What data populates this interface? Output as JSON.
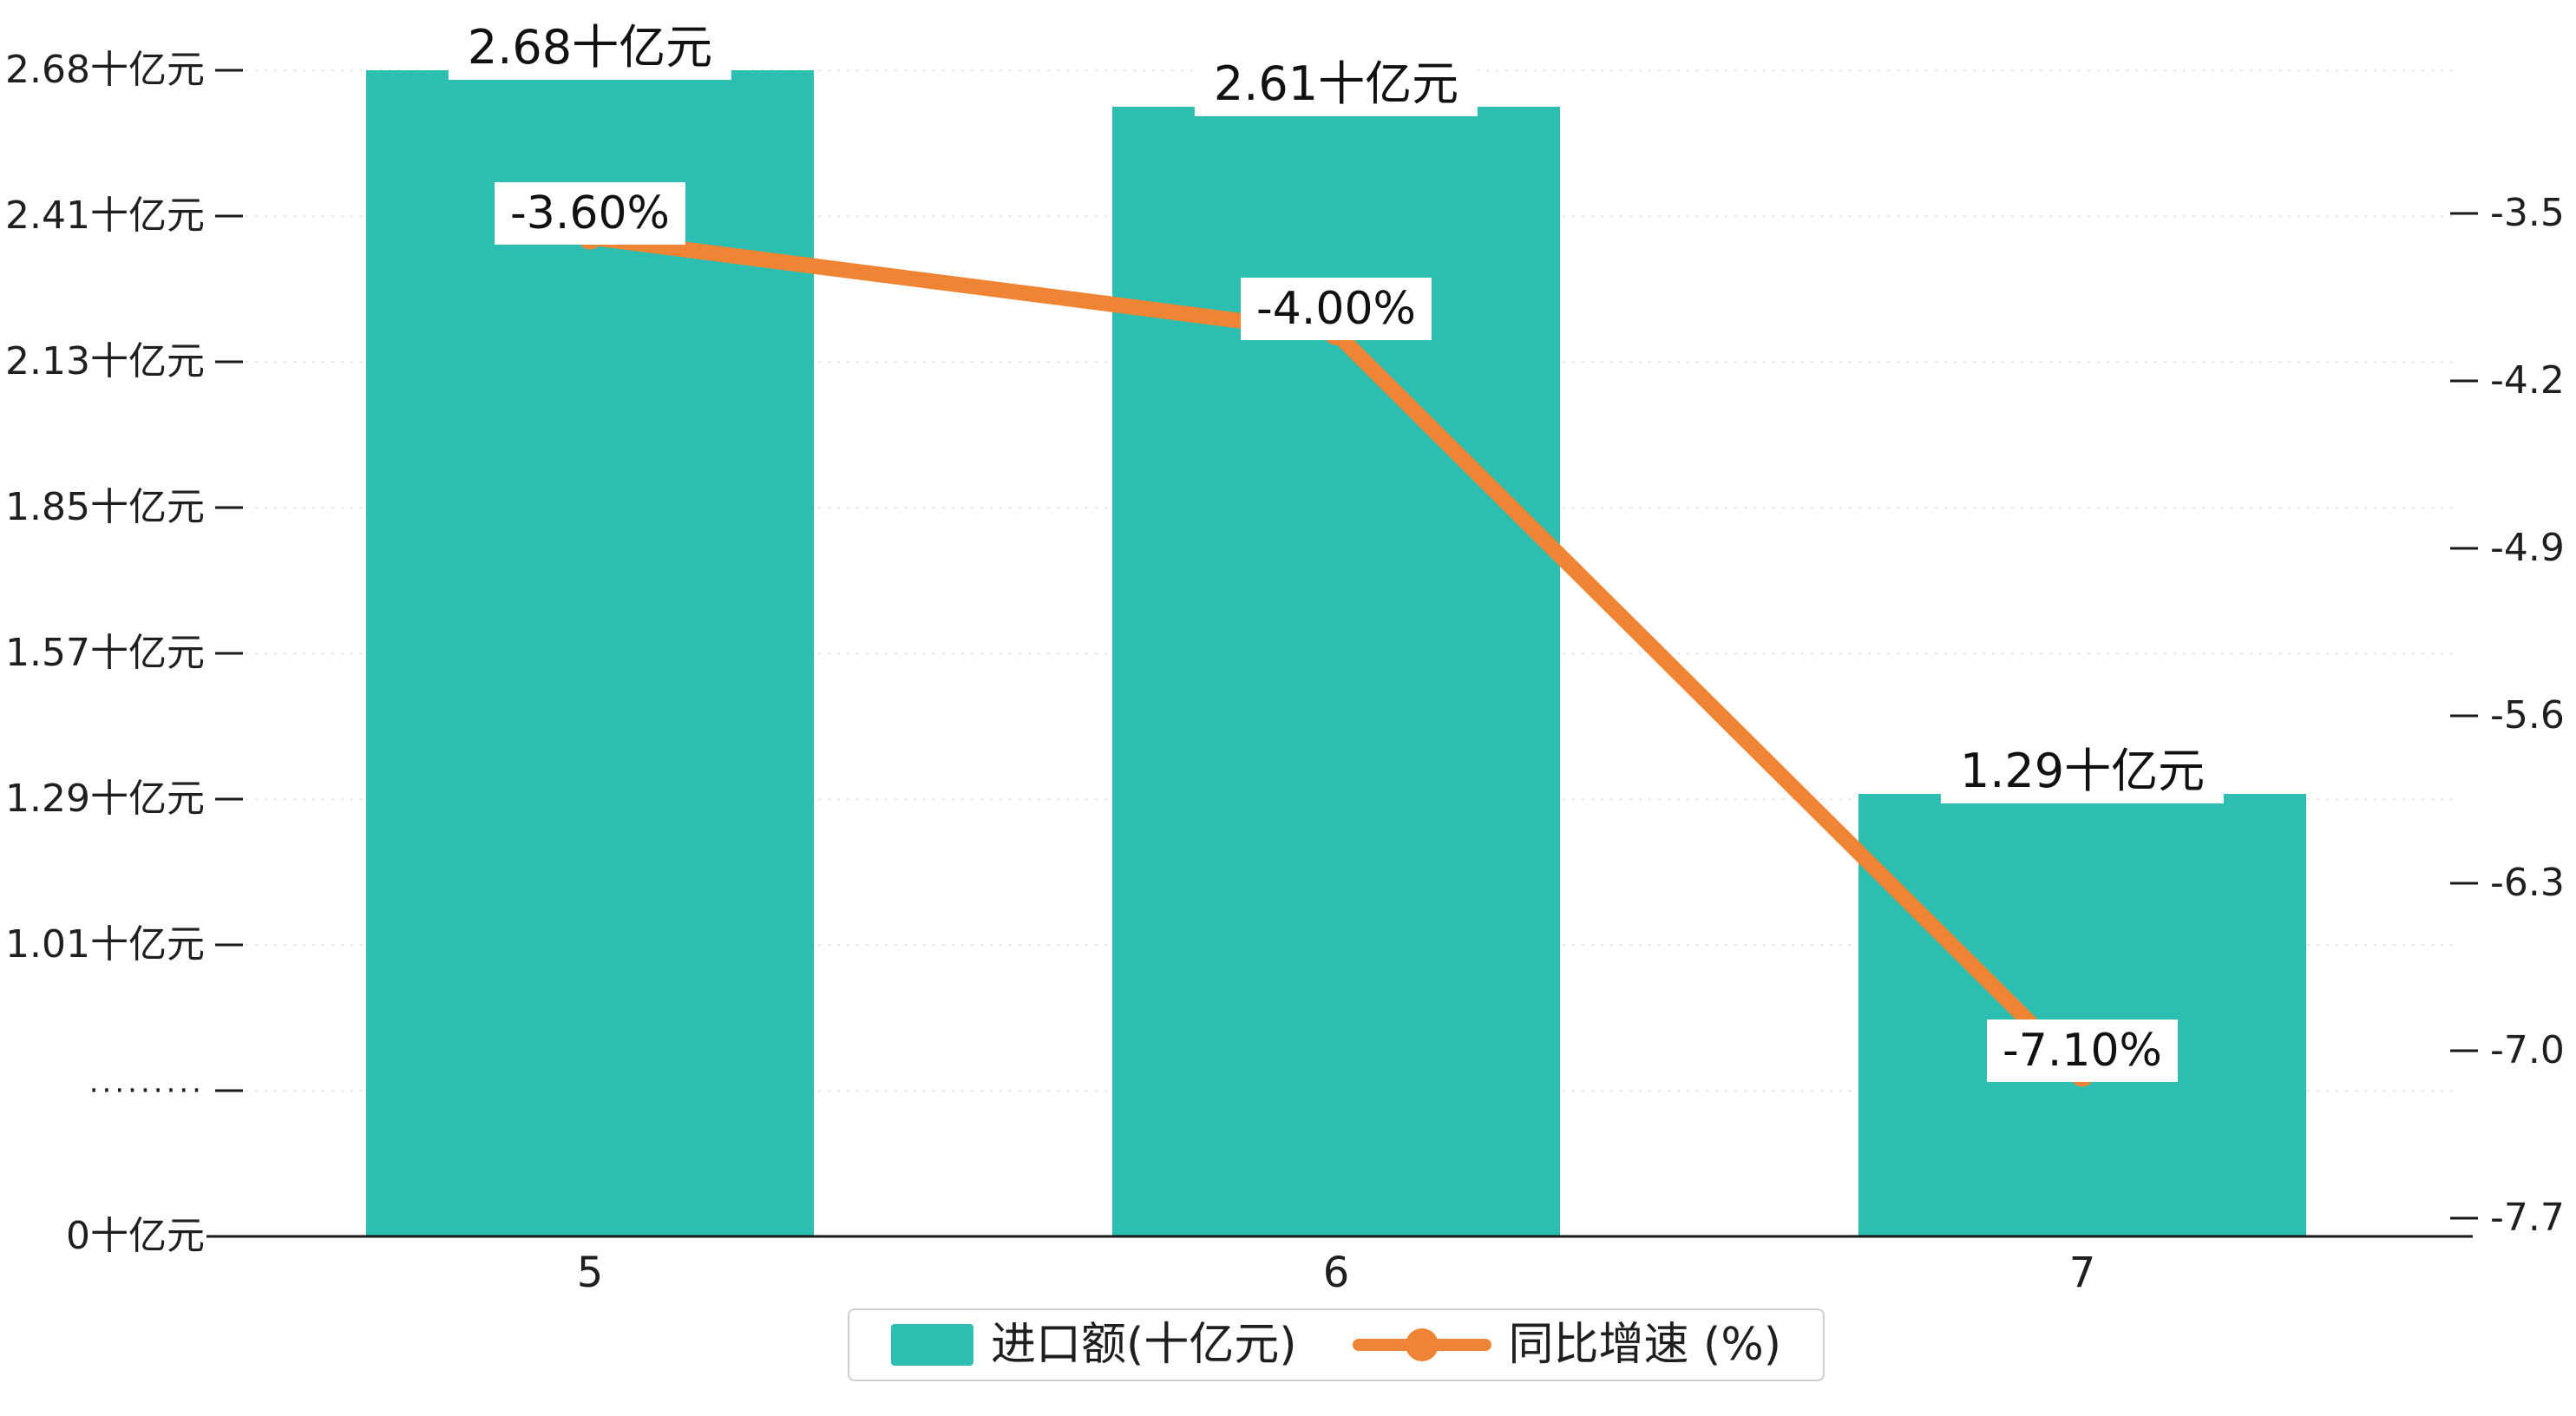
{
  "chart_data": {
    "type": "bar+line combo",
    "categories": [
      "5",
      "6",
      "7"
    ],
    "series": [
      {
        "name": "进口额(十亿元)",
        "type": "bar",
        "values": [
          2.68,
          2.61,
          1.29
        ],
        "labels": [
          "2.68十亿元",
          "2.61十亿元",
          "1.29十亿元"
        ],
        "axis": "left"
      },
      {
        "name": "同比增速 (%)",
        "type": "line",
        "values": [
          -3.6,
          -4.0,
          -7.1
        ],
        "labels": [
          "-3.60%",
          "-4.00%",
          "-7.10%"
        ],
        "axis": "right"
      }
    ],
    "left_axis": {
      "tick_labels": [
        "2.68十亿元",
        "2.41十亿元",
        "2.13十亿元",
        "1.85十亿元",
        "1.57十亿元",
        "1.29十亿元",
        "1.01十亿元",
        "·········",
        "0十亿元"
      ],
      "broken_axis": true
    },
    "right_axis": {
      "tick_labels": [
        "-3.5",
        "-4.2",
        "-4.9",
        "-5.6",
        "-6.3",
        "-7.0",
        "-7.7"
      ],
      "range": [
        -3.5,
        -7.7
      ]
    },
    "x_axis": {
      "tick_labels": [
        "5",
        "6",
        "7"
      ]
    },
    "title": "",
    "grid": "dashed horizontal",
    "legend_position": "bottom center",
    "legend": [
      "进口额(十亿元)",
      "同比增速 (%)"
    ]
  },
  "colors": {
    "bar": "#2cbfb1",
    "line": "#ee8434",
    "grid": "#e8e8e8",
    "axis": "#1a1a1a",
    "text": "#1f1f1f",
    "label_bg": "#ffffff",
    "legend_border": "#cfcfcf"
  }
}
